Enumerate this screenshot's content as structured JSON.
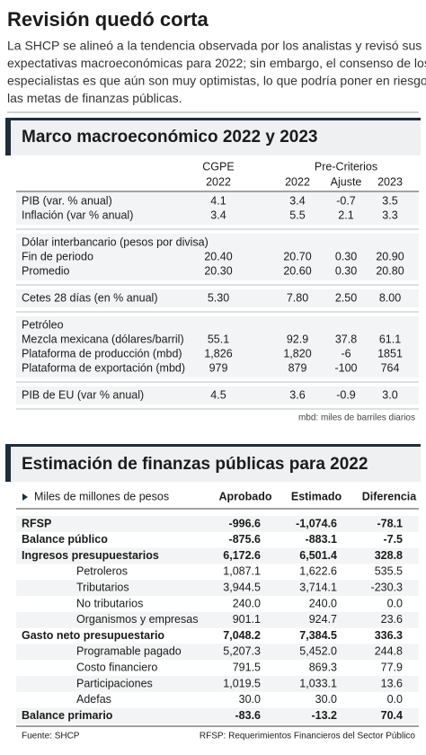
{
  "header": {
    "title": "Revisión quedó corta",
    "intro_lines": [
      "La SHCP se alineó a la tendencia observada por los analistas y revisó sus",
      "expectativas macroeconómicas para 2022; sin embargo, el consenso de los",
      "especialistas es que aún son muy optimistas, lo que podría poner en riesgo",
      "las metas de finanzas públicas."
    ]
  },
  "table1": {
    "title": "Marco macroeconómico 2022 y 2023",
    "cgpe": [
      "CGPE",
      "2022"
    ],
    "pre_criterios": "Pre-Criterios",
    "pre_columns": [
      "2022",
      "Ajuste",
      "2023"
    ],
    "sections": [
      [
        {
          "label": "PIB (var. % anual)",
          "values": [
            "4.1",
            "3.4",
            "-0.7",
            "3.5"
          ]
        },
        {
          "label": "Inflación (var % anual)",
          "values": [
            "3.4",
            "5.5",
            "2.1",
            "3.3"
          ]
        }
      ],
      [
        {
          "label": "Dólar interbancario (pesos por divisa)"
        },
        {
          "label": "Fin de periodo",
          "values": [
            "20.40",
            "20.70",
            "0.30",
            "20.90"
          ]
        },
        {
          "label": "Promedio",
          "values": [
            "20.30",
            "20.60",
            "0.30",
            "20.80"
          ]
        }
      ],
      [
        {
          "label": "Cetes 28 días (en % anual)",
          "values": [
            "5.30",
            "7.80",
            "2.50",
            "8.00"
          ]
        }
      ],
      [
        {
          "label": "Petróleo"
        },
        {
          "label": "Mezcla mexicana (dólares/barril)",
          "values": [
            "55.1",
            "92.9",
            "37.8",
            "61.1"
          ]
        },
        {
          "label": "Plataforma de producción (mbd)",
          "values": [
            "1,826",
            "1,820",
            "-6",
            "1851"
          ]
        },
        {
          "label": "Plataforma de exportación (mbd)",
          "values": [
            "979",
            "879",
            "-100",
            "764"
          ]
        }
      ],
      [
        {
          "label": "PIB de EU (var % anual)",
          "values": [
            "4.5",
            "3.6",
            "-0.9",
            "3.0"
          ]
        }
      ]
    ],
    "note": "mbd: miles de barriles diarios"
  },
  "table2": {
    "title": "Estimación de finanzas públicas para 2022",
    "unit": "Miles de millones de pesos",
    "columns": [
      "Aprobado",
      "Estimado",
      "Diferencia"
    ],
    "rows": [
      {
        "label": "RFSP",
        "values": [
          "-996.6",
          "-1,074.6",
          "-78.1"
        ],
        "bold": true
      },
      {
        "label": "Balance público",
        "values": [
          "-875.6",
          "-883.1",
          "-7.5"
        ],
        "bold": true
      },
      {
        "label": "Ingresos presupuestarios",
        "values": [
          "6,172.6",
          "6,501.4",
          "328.8"
        ],
        "bold": true
      },
      {
        "label": "Petroleros",
        "values": [
          "1,087.1",
          "1,622.6",
          "535.5"
        ]
      },
      {
        "label": "Tributarios",
        "values": [
          "3,944.5",
          "3,714.1",
          "-230.3"
        ]
      },
      {
        "label": "No tributarios",
        "values": [
          "240.0",
          "240.0",
          "0.0"
        ]
      },
      {
        "label": "Organismos y empresas",
        "values": [
          "901.1",
          "924.7",
          "23.6"
        ]
      },
      {
        "label": "Gasto neto presupuestario",
        "values": [
          "7,048.2",
          "7,384.5",
          "336.3"
        ],
        "bold": true
      },
      {
        "label": "Programable pagado",
        "values": [
          "5,207.3",
          "5,452.0",
          "244.8"
        ]
      },
      {
        "label": "Costo financiero",
        "values": [
          "791.5",
          "869.3",
          "77.9"
        ]
      },
      {
        "label": "Participaciones",
        "values": [
          "1,019.5",
          "1,033.1",
          "13.6"
        ]
      },
      {
        "label": "Adefas",
        "values": [
          "30.0",
          "30.0",
          "0.0"
        ]
      },
      {
        "label": "Balance primario",
        "values": [
          "-83.6",
          "-13.2",
          "70.4"
        ],
        "bold": true
      }
    ]
  },
  "footer": {
    "source": "Fuente: SHCP",
    "note": "RFSP: Requerimientos Financieros del Sector Público"
  }
}
